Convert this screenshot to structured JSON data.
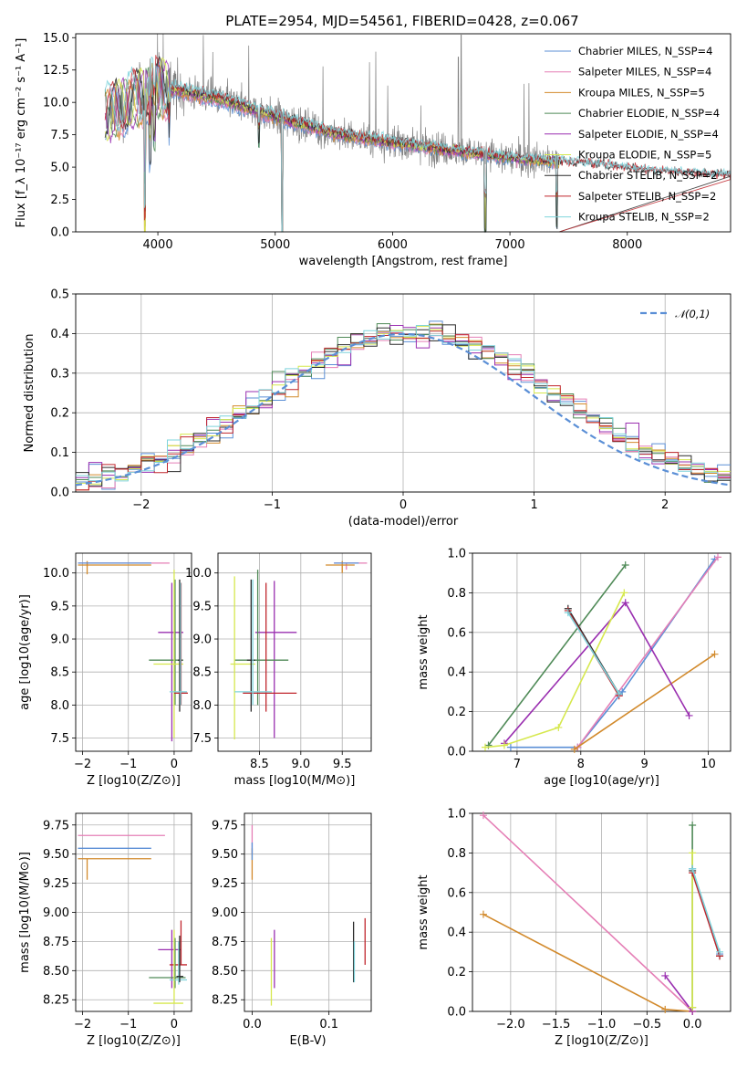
{
  "chart_data": [
    {
      "type": "line",
      "title": "PLATE=2954, MJD=54561, FIBERID=0428, z=0.067",
      "xlabel": "wavelength [Angstrom, rest frame]",
      "ylabel": "Flux [f_λ 10⁻¹⁷ erg cm⁻² s⁻¹ A⁻¹]",
      "xlim": [
        3300,
        8880
      ],
      "ylim": [
        0,
        15.3
      ],
      "xticks": [
        "4000",
        "5000",
        "6000",
        "7000",
        "8000"
      ],
      "yticks": [
        "0.0",
        "2.5",
        "5.0",
        "7.5",
        "10.0",
        "12.5",
        "15.0"
      ],
      "grid": false,
      "legend_position": "top-right",
      "series": [
        {
          "name": "Chabrier MILES, N_SSP=4",
          "color": "#5b8fd6"
        },
        {
          "name": "Salpeter MILES, N_SSP=4",
          "color": "#e57fb6"
        },
        {
          "name": "Kroupa MILES, N_SSP=5",
          "color": "#d28a2c"
        },
        {
          "name": "Chabrier ELODIE, N_SSP=4",
          "color": "#4f8a57"
        },
        {
          "name": "Salpeter ELODIE, N_SSP=4",
          "color": "#9a2fb0"
        },
        {
          "name": "Kroupa ELODIE, N_SSP=5",
          "color": "#d6e84e"
        },
        {
          "name": "Chabrier STELIB, N_SSP=2",
          "color": "#2b2b2b"
        },
        {
          "name": "Salpeter STELIB, N_SSP=2",
          "color": "#c0262d"
        },
        {
          "name": "Kroupa STELIB, N_SSP=2",
          "color": "#7fd4dc"
        }
      ],
      "continuum": {
        "x": [
          3550,
          4000,
          4500,
          5000,
          5500,
          6000,
          6500,
          7000,
          7400,
          7800,
          8200,
          8880
        ],
        "y": [
          9.0,
          11.2,
          10.3,
          8.9,
          7.6,
          6.9,
          6.3,
          5.7,
          5.4,
          5.1,
          4.7,
          4.3
        ]
      },
      "data_range": [
        3550,
        7420
      ]
    },
    {
      "type": "step",
      "xlabel": "(data-model)/error",
      "ylabel": "Normed distribution",
      "xlim": [
        -2.5,
        2.5
      ],
      "ylim": [
        0,
        0.5
      ],
      "xticks": [
        "−2",
        "−1",
        "0",
        "1",
        "2"
      ],
      "yticks": [
        "0.0",
        "0.1",
        "0.2",
        "0.3",
        "0.4",
        "0.5"
      ],
      "grid": true,
      "legend_position": "top-right",
      "gauss_label": "𝒩(0,1)",
      "bin_width": 0.1,
      "bin_start": -2.5
    },
    {
      "type": "scatter",
      "xlabel": "Z [log10(Z/Z⊙)]",
      "ylabel": "age  [log10(age/yr)]",
      "xlim": [
        -2.15,
        0.38
      ],
      "ylim": [
        7.3,
        10.3
      ],
      "xticks": [
        "−2",
        "−1",
        "0"
      ],
      "yticks": [
        "7.5",
        "8.0",
        "8.5",
        "9.0",
        "9.5",
        "10.0"
      ],
      "grid": true
    },
    {
      "type": "scatter",
      "xlabel": "mass [log10(M/M⊙)]",
      "xlim": [
        8.0,
        9.85
      ],
      "ylim": [
        7.3,
        10.3
      ],
      "xticks": [
        "8.5",
        "9.0",
        "9.5"
      ],
      "yticks": [
        "7.5",
        "8.0",
        "8.5",
        "9.0",
        "9.5",
        "10.0"
      ],
      "grid": true
    },
    {
      "type": "line",
      "xlabel": "age  [log10(age/yr)]",
      "ylabel": "mass weight",
      "xlim": [
        6.3,
        10.35
      ],
      "ylim": [
        0,
        1
      ],
      "xticks": [
        "7",
        "8",
        "9",
        "10"
      ],
      "yticks": [
        "0.0",
        "0.2",
        "0.4",
        "0.6",
        "0.8",
        "1.0"
      ],
      "grid": true,
      "series": [
        {
          "color": "#5b8fd6",
          "x": [
            6.9,
            7.95,
            8.65,
            10.1
          ],
          "y": [
            0.02,
            0.02,
            0.3,
            0.97
          ]
        },
        {
          "color": "#e57fb6",
          "x": [
            7.95,
            10.15
          ],
          "y": [
            0.02,
            0.98
          ]
        },
        {
          "color": "#d28a2c",
          "x": [
            7.9,
            10.1
          ],
          "y": [
            0.01,
            0.49
          ]
        },
        {
          "color": "#4f8a57",
          "x": [
            6.55,
            8.7
          ],
          "y": [
            0.03,
            0.94
          ]
        },
        {
          "color": "#9a2fb0",
          "x": [
            6.8,
            8.7,
            9.7
          ],
          "y": [
            0.04,
            0.75,
            0.18
          ]
        },
        {
          "color": "#d6e84e",
          "x": [
            6.5,
            6.8,
            7.65,
            8.68
          ],
          "y": [
            0.02,
            0.03,
            0.12,
            0.8
          ]
        },
        {
          "color": "#2b2b2b",
          "x": [
            7.8,
            8.6
          ],
          "y": [
            0.72,
            0.29
          ]
        },
        {
          "color": "#c0262d",
          "x": [
            7.8,
            8.6
          ],
          "y": [
            0.71,
            0.28
          ]
        },
        {
          "color": "#7fd4dc",
          "x": [
            7.8,
            8.6
          ],
          "y": [
            0.7,
            0.29
          ]
        }
      ]
    },
    {
      "type": "scatter",
      "xlabel": "Z [log10(Z/Z⊙)]",
      "ylabel": "mass [log10(M/M⊙)]",
      "xlim": [
        -2.15,
        0.38
      ],
      "ylim": [
        8.15,
        9.85
      ],
      "xticks": [
        "−2",
        "−1",
        "0"
      ],
      "yticks": [
        "8.25",
        "8.50",
        "8.75",
        "9.00",
        "9.25",
        "9.50",
        "9.75"
      ],
      "grid": true
    },
    {
      "type": "scatter",
      "xlabel": "E(B-V)",
      "xlim": [
        -0.01,
        0.155
      ],
      "ylim": [
        8.15,
        9.85
      ],
      "xticks": [
        "0.0",
        "0.1"
      ],
      "yticks": [
        "8.25",
        "8.50",
        "8.75",
        "9.00",
        "9.25",
        "9.50",
        "9.75"
      ],
      "grid": true
    },
    {
      "type": "line",
      "xlabel": "Z [log10(Z/Z⊙)]",
      "ylabel": "mass weight",
      "xlim": [
        -2.42,
        0.42
      ],
      "ylim": [
        0,
        1
      ],
      "xticks": [
        "−2.0",
        "−1.5",
        "−1.0",
        "−0.5",
        "0.0"
      ],
      "yticks": [
        "0.0",
        "0.2",
        "0.4",
        "0.6",
        "0.8",
        "1.0"
      ],
      "grid": true,
      "series": [
        {
          "color": "#e57fb6",
          "x": [
            -2.3,
            0.0
          ],
          "y": [
            0.99,
            0.0
          ]
        },
        {
          "color": "#d28a2c",
          "x": [
            -2.3,
            -0.3,
            0.0
          ],
          "y": [
            0.49,
            0.01,
            0.0
          ]
        },
        {
          "color": "#9a2fb0",
          "x": [
            -0.3,
            0.0
          ],
          "y": [
            0.18,
            0.0
          ]
        },
        {
          "color": "#4f8a57",
          "x": [
            0.0,
            0.0
          ],
          "y": [
            0.94,
            0.02
          ]
        },
        {
          "color": "#d6e84e",
          "x": [
            0.0,
            0.0
          ],
          "y": [
            0.8,
            0.02
          ]
        },
        {
          "color": "#5b8fd6",
          "x": [
            0.0,
            0.3
          ],
          "y": [
            0.72,
            0.29
          ]
        },
        {
          "color": "#2b2b2b",
          "x": [
            0.0,
            0.3
          ],
          "y": [
            0.71,
            0.28
          ]
        },
        {
          "color": "#c0262d",
          "x": [
            0.0,
            0.3
          ],
          "y": [
            0.7,
            0.28
          ]
        },
        {
          "color": "#7fd4dc",
          "x": [
            0.0,
            0.3
          ],
          "y": [
            0.72,
            0.3
          ]
        }
      ]
    }
  ]
}
